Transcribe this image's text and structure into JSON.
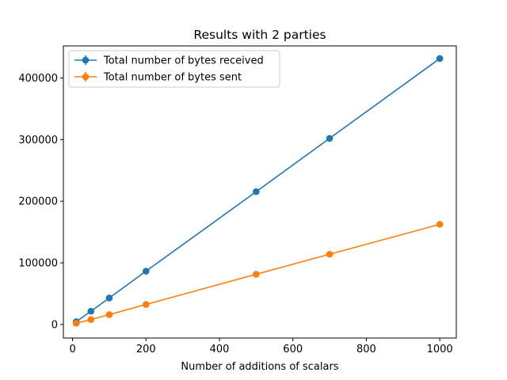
{
  "chart_data": {
    "type": "line",
    "title": "Results with 2 parties",
    "xlabel": "Number of additions of scalars",
    "ylabel": "",
    "xlim": [
      -25,
      1045
    ],
    "ylim": [
      -22000,
      452000
    ],
    "xticks": [
      0,
      200,
      400,
      600,
      800,
      1000
    ],
    "xtick_labels": [
      "0",
      "200",
      "400",
      "600",
      "800",
      "1000"
    ],
    "yticks": [
      0,
      100000,
      200000,
      300000,
      400000
    ],
    "ytick_labels": [
      "0",
      "100000",
      "200000",
      "300000",
      "400000"
    ],
    "grid": false,
    "legend_position": "top-left",
    "x": [
      10,
      50,
      100,
      200,
      500,
      700,
      1000
    ],
    "series": [
      {
        "name": "Total number of bytes received",
        "color": "#1f77b4",
        "marker": "circle",
        "error_bars": true,
        "values": [
          4500,
          21500,
          43000,
          86500,
          215500,
          302000,
          431500
        ]
      },
      {
        "name": "Total number of bytes sent",
        "color": "#ff7f0e",
        "marker": "circle",
        "error_bars": true,
        "values": [
          2000,
          8000,
          16000,
          32500,
          81500,
          114000,
          162500
        ]
      }
    ]
  }
}
